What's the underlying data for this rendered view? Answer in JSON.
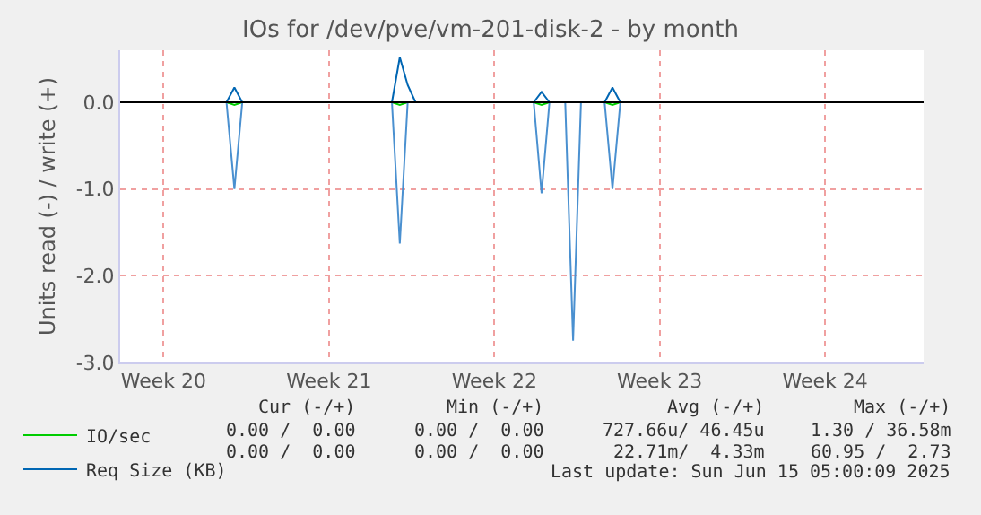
{
  "chart_data": {
    "type": "line",
    "title": "IOs for /dev/pve/vm-201-disk-2 - by month",
    "ylabel": "Units read (-) / write (+)",
    "categories": [
      null,
      null,
      null,
      null,
      null,
      "Week 20",
      null,
      null,
      null,
      null,
      null,
      null,
      null,
      null,
      null,
      null,
      null,
      null,
      null,
      null,
      null,
      null,
      null,
      null,
      null,
      null,
      "Week 21",
      null,
      null,
      null,
      null,
      null,
      null,
      null,
      null,
      null,
      null,
      null,
      null,
      null,
      null,
      null,
      null,
      null,
      null,
      null,
      null,
      "Week 22",
      null,
      null,
      null,
      null,
      null,
      null,
      null,
      null,
      null,
      null,
      null,
      null,
      null,
      null,
      null,
      null,
      null,
      null,
      null,
      null,
      "Week 23",
      null,
      null,
      null,
      null,
      null,
      null,
      null,
      null,
      null,
      null,
      null,
      null,
      null,
      null,
      null,
      null,
      null,
      null,
      null,
      null,
      "Week 24",
      null,
      null,
      null,
      null,
      null,
      null,
      null,
      null,
      null,
      null,
      null,
      null
    ],
    "ylim": [
      -3,
      0.6
    ],
    "yticks": [
      {
        "value": -3,
        "label": "-3.0"
      },
      {
        "value": -2,
        "label": "-2.0"
      },
      {
        "value": -1,
        "label": "-1.0"
      },
      {
        "value": 0,
        "label": "0.0"
      }
    ],
    "grid": true,
    "legend": "bottom",
    "line_style": "solid",
    "ref_lines": [
      {
        "axis": "y",
        "value": 0,
        "label": null,
        "color": "#000000"
      }
    ],
    "series": [
      {
        "name": "IO/sec",
        "color": "#00cc00",
        "values": [
          null,
          null,
          null,
          null,
          null,
          null,
          null,
          null,
          null,
          null,
          null,
          null,
          null,
          0,
          -0.03,
          0,
          null,
          null,
          null,
          null,
          null,
          null,
          null,
          null,
          null,
          null,
          null,
          null,
          null,
          null,
          null,
          null,
          null,
          null,
          0,
          -0.03,
          0,
          null,
          null,
          null,
          null,
          null,
          null,
          null,
          null,
          null,
          null,
          null,
          null,
          null,
          null,
          null,
          0,
          -0.03,
          0,
          null,
          null,
          null,
          null,
          null,
          null,
          0,
          -0.03,
          0,
          null,
          null,
          null,
          null,
          null,
          null,
          null,
          null,
          null,
          null,
          null,
          null,
          null,
          null,
          null,
          null,
          null,
          null,
          null,
          null,
          null,
          null,
          null,
          null,
          null,
          null,
          null,
          null,
          null,
          null,
          null,
          null,
          null,
          null,
          null,
          null,
          null,
          null
        ]
      },
      {
        "name": "Req Size (KB)",
        "color": "#0066b3",
        "values": [
          null,
          null,
          null,
          null,
          null,
          null,
          null,
          null,
          null,
          null,
          null,
          null,
          null,
          0,
          0.17,
          0,
          null,
          null,
          null,
          null,
          null,
          null,
          null,
          null,
          null,
          null,
          null,
          null,
          null,
          null,
          null,
          null,
          null,
          null,
          0,
          0.52,
          0.2,
          0,
          null,
          null,
          null,
          null,
          null,
          null,
          null,
          null,
          null,
          null,
          null,
          null,
          null,
          null,
          0,
          0.12,
          0,
          null,
          null,
          null,
          null,
          null,
          null,
          0,
          0.17,
          0,
          null,
          null,
          null,
          null,
          null,
          null,
          null,
          null,
          null,
          null,
          null,
          null,
          null,
          null,
          null,
          null,
          null,
          null,
          null,
          null,
          null,
          null,
          null,
          null,
          null,
          null,
          null,
          null,
          null,
          null,
          null,
          null,
          null,
          null,
          null,
          null,
          null,
          null
        ]
      },
      {
        "color": "#4a90d0",
        "values": [
          null,
          null,
          null,
          null,
          null,
          null,
          null,
          null,
          null,
          null,
          null,
          null,
          null,
          0,
          -1.0,
          0,
          null,
          null,
          null,
          null,
          null,
          null,
          null,
          null,
          null,
          null,
          null,
          null,
          null,
          null,
          null,
          null,
          null,
          null,
          0,
          -1.63,
          0,
          null,
          null,
          null,
          null,
          null,
          null,
          null,
          null,
          null,
          null,
          null,
          null,
          null,
          null,
          null,
          0,
          -1.05,
          0,
          null,
          0,
          -2.75,
          0,
          null,
          null,
          0,
          -1.0,
          0,
          null,
          null,
          null,
          null,
          null,
          null,
          null,
          null,
          null,
          null,
          null,
          null,
          null,
          null,
          null,
          null,
          null,
          null,
          null,
          null,
          null,
          null,
          null,
          null,
          null,
          null,
          null,
          null,
          null,
          null,
          null,
          null,
          null,
          null,
          null,
          null,
          null,
          null
        ]
      }
    ],
    "annotations": [
      "Cur (-/+)",
      "Min (-/+)",
      "Avg (-/+)",
      "Max (-/+)",
      "0.00 /  0.00",
      "0.00 /  0.00",
      "727.66u/ 46.45u",
      "1.30 / 36.58m",
      "0.00 /  0.00",
      "0.00 /  0.00",
      "22.71m/  4.33m",
      "60.95 /  2.73",
      "Last update: Sun Jun 15 05:00:09 2025"
    ]
  }
}
